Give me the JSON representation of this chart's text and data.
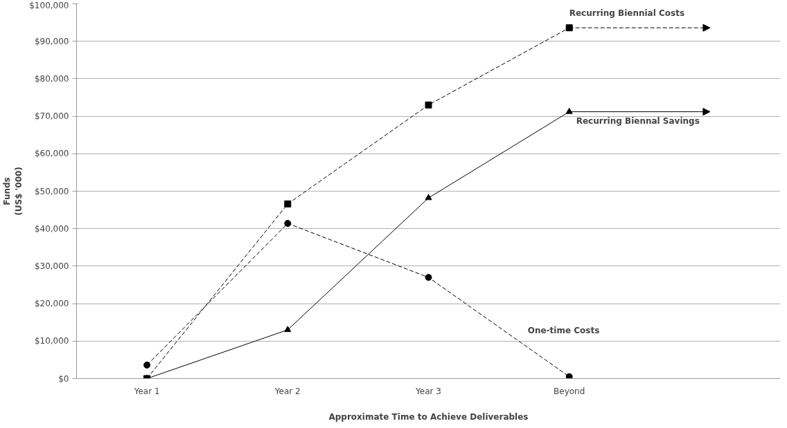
{
  "chart_data": {
    "type": "line",
    "xlabel": "Approximate Time to Achieve Deliverables",
    "ylabel": "Funds\n(US$ '000)",
    "categories": [
      "Year 1",
      "Year 2",
      "Year 3",
      "Beyond",
      null
    ],
    "ylim": [
      0,
      100000
    ],
    "yticks": [
      {
        "value": 0,
        "label": "$0"
      },
      {
        "value": 10000,
        "label": "$10,000"
      },
      {
        "value": 20000,
        "label": "$20,000"
      },
      {
        "value": 30000,
        "label": "$30,000"
      },
      {
        "value": 40000,
        "label": "$40,000"
      },
      {
        "value": 50000,
        "label": "$50,000"
      },
      {
        "value": 60000,
        "label": "$60,000"
      },
      {
        "value": 70000,
        "label": "$70,000"
      },
      {
        "value": 80000,
        "label": "$80,000"
      },
      {
        "value": 90000,
        "label": "$90,000"
      },
      {
        "value": 100000,
        "label": "$100,000"
      }
    ],
    "grid": "y",
    "series": [
      {
        "name": "Recurring Biennial Costs",
        "color": "#000000",
        "marker": "square",
        "line_style": "dashed",
        "values": [
          0,
          46600,
          73000,
          93600,
          93600
        ]
      },
      {
        "name": "Recurring Biennal Savings",
        "color": "#000000",
        "marker": "triangle",
        "line_style": "solid",
        "values": [
          0,
          13000,
          48200,
          71200,
          71200
        ]
      },
      {
        "name": "One-time Costs",
        "color": "#000000",
        "marker": "circle",
        "line_style": "dashed",
        "values": [
          3600,
          41400,
          27000,
          500,
          null
        ]
      }
    ]
  }
}
